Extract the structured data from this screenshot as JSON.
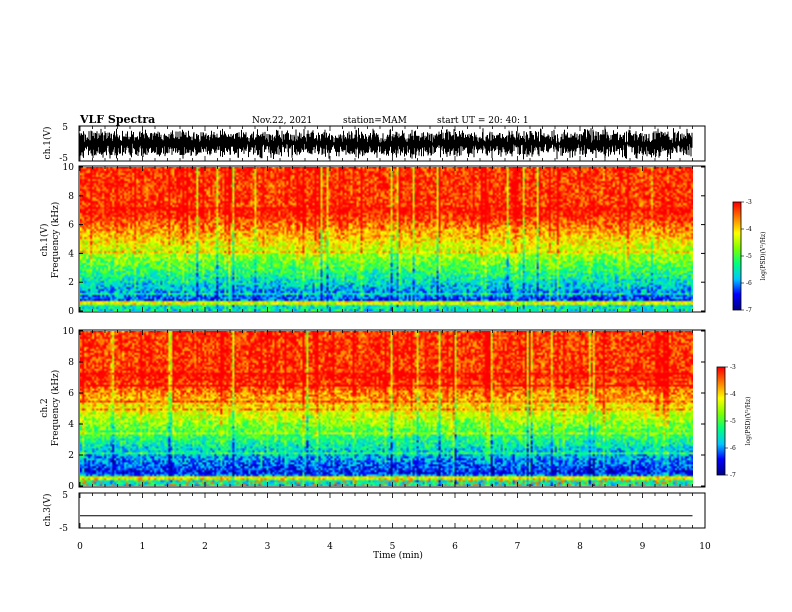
{
  "header": {
    "title": "VLF Spectra",
    "date": "Nov.22, 2021",
    "station": "station=MAM",
    "start": "start UT =  20: 40: 1"
  },
  "chart_data": [
    {
      "type": "line",
      "panel": "ch1-waveform",
      "ylabel": "ch.1(V)",
      "ylim": [
        -5,
        5
      ],
      "yticks": [
        "5",
        "-5"
      ],
      "xlim": [
        0,
        10
      ],
      "note": "dense black waveform, amplitude ~ +/-4 V, data ends near 9.8 min"
    },
    {
      "type": "heatmap",
      "panel": "ch1-spectrogram",
      "ylabel": "ch.1 Frequency (kHz)",
      "ylim": [
        0,
        10
      ],
      "yticks": [
        "0",
        "2",
        "4",
        "6",
        "8",
        "10"
      ],
      "xlim": [
        0,
        10
      ],
      "colorbar": {
        "label": "log(PSD)(V²/Hz)",
        "range": [
          -7,
          -3
        ],
        "ticks": [
          "-3",
          "-4",
          "-5",
          "-6",
          "-7"
        ]
      },
      "description": "intensity rising from ~-6.5 at low frequency (blue) to ~-3 above 7 kHz (red); bright band near 0.5 kHz"
    },
    {
      "type": "heatmap",
      "panel": "ch2-spectrogram",
      "ylabel": "ch.2 Frequency (kHz)",
      "ylim": [
        0,
        10
      ],
      "yticks": [
        "0",
        "2",
        "4",
        "6",
        "8",
        "10"
      ],
      "xlim": [
        0,
        10
      ],
      "colorbar": {
        "label": "log(PSD)(V²/Hz)",
        "range": [
          -7,
          -3
        ],
        "ticks": [
          "-3",
          "-4",
          "-5",
          "-6",
          "-7"
        ]
      },
      "description": "intensity rising from ~-6.8 at low frequency (dark blue) to ~-3 above 7 kHz (red); spiky low-frequency bursts"
    },
    {
      "type": "line",
      "panel": "ch3-waveform",
      "ylabel": "ch.3(V)",
      "ylim": [
        -5,
        5
      ],
      "yticks": [
        "5",
        "-5"
      ],
      "xlim": [
        0,
        10
      ],
      "x": [
        0,
        9.8
      ],
      "y": [
        -1.5,
        -1.5
      ]
    }
  ],
  "xaxis": {
    "label": "Time (min)",
    "ticks": [
      "0",
      "1",
      "2",
      "3",
      "4",
      "5",
      "6",
      "7",
      "8",
      "9",
      "10"
    ]
  },
  "colors": {
    "colormap": [
      "#00008b",
      "#0000ff",
      "#00c8ff",
      "#00ff80",
      "#80ff00",
      "#ffff00",
      "#ff8000",
      "#ff0000"
    ]
  }
}
